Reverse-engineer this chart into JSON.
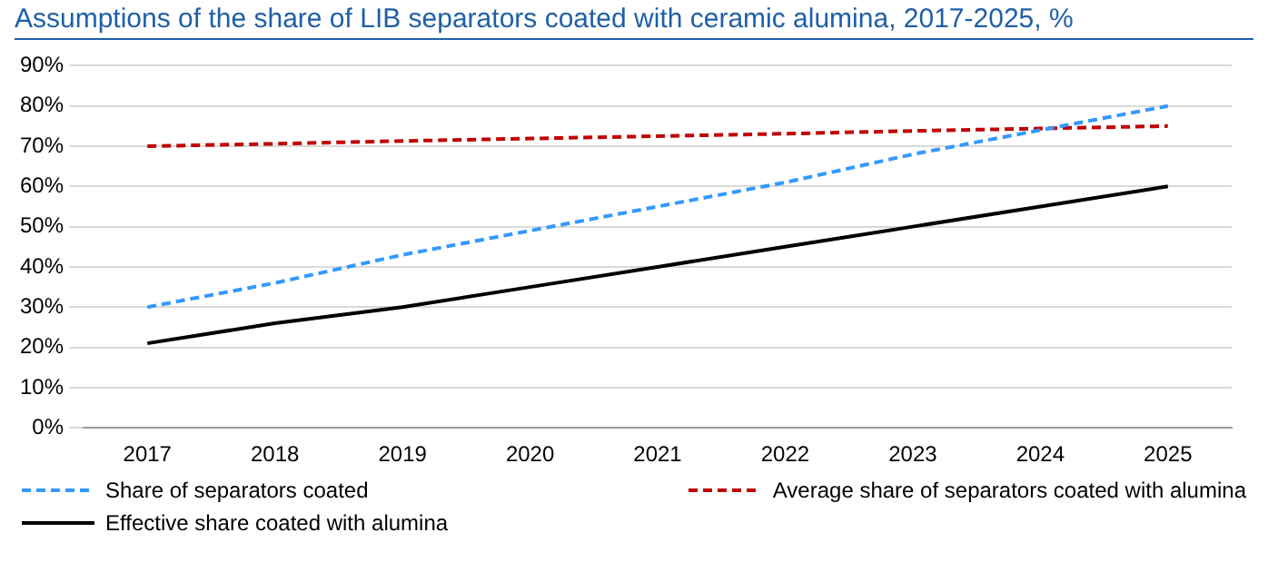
{
  "chart_data": {
    "type": "line",
    "title": "Assumptions of the share of LIB separators coated with ceramic alumina, 2017-2025, %",
    "categories": [
      "2017",
      "2018",
      "2019",
      "2020",
      "2021",
      "2022",
      "2023",
      "2024",
      "2025"
    ],
    "series": [
      {
        "name": "Share of separators coated",
        "color": "#3399ff",
        "line_style": "dashed",
        "values": [
          30,
          36,
          43,
          49,
          55,
          61,
          68,
          74,
          80
        ]
      },
      {
        "name": "Average share of separators coated with alumina",
        "color": "#c00000",
        "line_style": "dashed",
        "values": [
          70,
          70.6,
          71.3,
          71.9,
          72.5,
          73.1,
          73.8,
          74.4,
          75
        ]
      },
      {
        "name": "Effective share coated with alumina",
        "color": "#000000",
        "line_style": "solid",
        "values": [
          21,
          26,
          30,
          35,
          40,
          45,
          50,
          55,
          60
        ]
      }
    ],
    "ylim": [
      0,
      90
    ],
    "yticks": [
      {
        "value": 0,
        "label": "0%"
      },
      {
        "value": 10,
        "label": "10%"
      },
      {
        "value": 20,
        "label": "20%"
      },
      {
        "value": 30,
        "label": "30%"
      },
      {
        "value": 40,
        "label": "40%"
      },
      {
        "value": 50,
        "label": "50%"
      },
      {
        "value": 60,
        "label": "60%"
      },
      {
        "value": 70,
        "label": "70%"
      },
      {
        "value": 80,
        "label": "80%"
      },
      {
        "value": 90,
        "label": "90%"
      }
    ],
    "grid": "y",
    "legend": "bottom",
    "marker": "none"
  }
}
